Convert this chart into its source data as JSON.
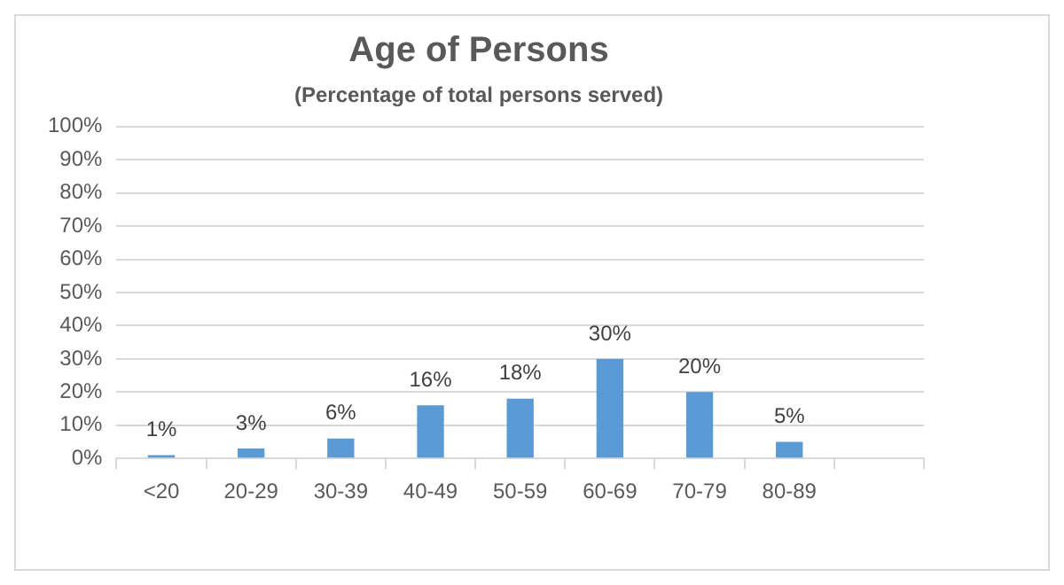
{
  "chart_data": {
    "type": "bar",
    "title": "Age of Persons",
    "subtitle": "(Percentage of total persons served)",
    "categories": [
      "<20",
      "20-29",
      "30-39",
      "40-49",
      "50-59",
      "60-69",
      "70-79",
      "80-89",
      null
    ],
    "values": [
      1,
      3,
      6,
      16,
      18,
      30,
      20,
      5,
      null
    ],
    "value_labels": [
      "1%",
      "3%",
      "6%",
      "16%",
      "18%",
      "30%",
      "20%",
      "5%",
      null
    ],
    "color": "#5b9bd5",
    "ylim": [
      0,
      100
    ],
    "yticks": [
      {
        "value": 0,
        "label": "0%"
      },
      {
        "value": 10,
        "label": "10%"
      },
      {
        "value": 20,
        "label": "20%"
      },
      {
        "value": 30,
        "label": "30%"
      },
      {
        "value": 40,
        "label": "40%"
      },
      {
        "value": 50,
        "label": "50%"
      },
      {
        "value": 60,
        "label": "60%"
      },
      {
        "value": 70,
        "label": "70%"
      },
      {
        "value": 80,
        "label": "80%"
      },
      {
        "value": 90,
        "label": "90%"
      },
      {
        "value": 100,
        "label": "100%"
      }
    ],
    "grid": "y",
    "legend": false
  }
}
